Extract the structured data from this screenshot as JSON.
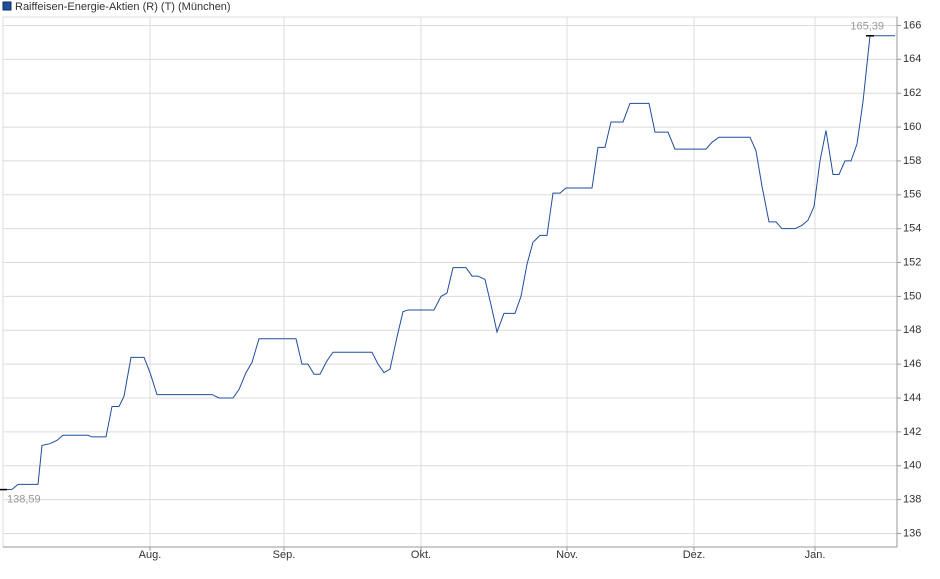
{
  "chart_data": {
    "type": "line",
    "legend": "Raiffeisen-Energie-Aktien (R) (T) (München)",
    "series": [
      {
        "name": "Raiffeisen-Energie-Aktien (R) (T) (München)",
        "color": "#1f4e9c",
        "x": [
          0,
          9,
          15,
          35,
          39,
          47,
          54,
          60,
          85,
          89,
          103,
          109,
          116,
          121,
          128,
          141,
          147,
          154,
          209,
          216,
          230,
          236,
          243,
          249,
          256,
          293,
          299,
          305,
          311,
          317,
          324,
          330,
          369,
          375,
          381,
          387,
          394,
          400,
          405,
          431,
          438,
          444,
          450,
          463,
          469,
          475,
          482,
          488,
          494,
          501,
          512,
          518,
          524,
          530,
          537,
          544,
          550,
          557,
          563,
          589,
          595,
          602,
          608,
          620,
          627,
          646,
          652,
          665,
          672,
          703,
          709,
          716,
          747,
          753,
          759,
          766,
          773,
          779,
          792,
          799,
          805,
          811,
          817,
          823,
          830,
          836,
          842,
          848,
          854,
          860,
          867,
          892
        ],
        "values": [
          138.59,
          138.6,
          138.9,
          138.9,
          141.2,
          141.3,
          141.5,
          141.8,
          141.8,
          141.7,
          141.7,
          143.5,
          143.5,
          144.1,
          146.4,
          146.4,
          145.5,
          144.2,
          144.2,
          144.0,
          144.0,
          144.5,
          145.5,
          146.1,
          147.5,
          147.5,
          146.0,
          146.0,
          145.4,
          145.4,
          146.2,
          146.7,
          146.7,
          146.0,
          145.5,
          145.7,
          147.6,
          149.1,
          149.2,
          149.2,
          150.0,
          150.2,
          151.7,
          151.7,
          151.2,
          151.2,
          151.0,
          149.5,
          147.9,
          149.0,
          149.0,
          150.0,
          151.9,
          153.2,
          153.6,
          153.6,
          156.1,
          156.1,
          156.4,
          156.4,
          158.8,
          158.8,
          160.3,
          160.3,
          161.4,
          161.4,
          159.7,
          159.7,
          158.7,
          158.7,
          159.1,
          159.4,
          159.4,
          158.6,
          156.5,
          154.4,
          154.4,
          154.0,
          154.0,
          154.2,
          154.5,
          155.3,
          158.0,
          159.8,
          157.2,
          157.2,
          158.0,
          158.0,
          159.0,
          161.5,
          165.39,
          165.39
        ]
      }
    ],
    "annotations": [
      {
        "label": "138,59",
        "x": 0,
        "value": 138.59
      },
      {
        "label": "165,39",
        "x": 867,
        "value": 165.39
      }
    ],
    "xlim": [
      0,
      894
    ],
    "xticks": [
      {
        "value": 147,
        "label": "Aug."
      },
      {
        "value": 281,
        "label": "Sep."
      },
      {
        "value": 418,
        "label": "Okt."
      },
      {
        "value": 564,
        "label": "Nov."
      },
      {
        "value": 691,
        "label": "Dez."
      },
      {
        "value": 812,
        "label": "Jan."
      }
    ],
    "ylim": [
      135.2,
      166.5
    ],
    "yticks": [
      136,
      138,
      140,
      142,
      144,
      146,
      148,
      150,
      152,
      154,
      156,
      158,
      160,
      162,
      164,
      166
    ],
    "grid": true
  }
}
